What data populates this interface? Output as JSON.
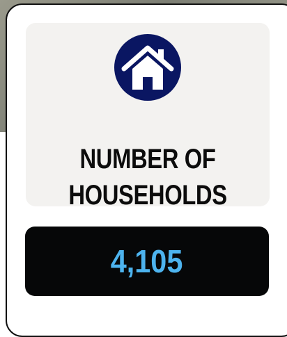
{
  "card": {
    "title": "NUMBER OF HOUSEHOLDS",
    "value": "4,105"
  }
}
